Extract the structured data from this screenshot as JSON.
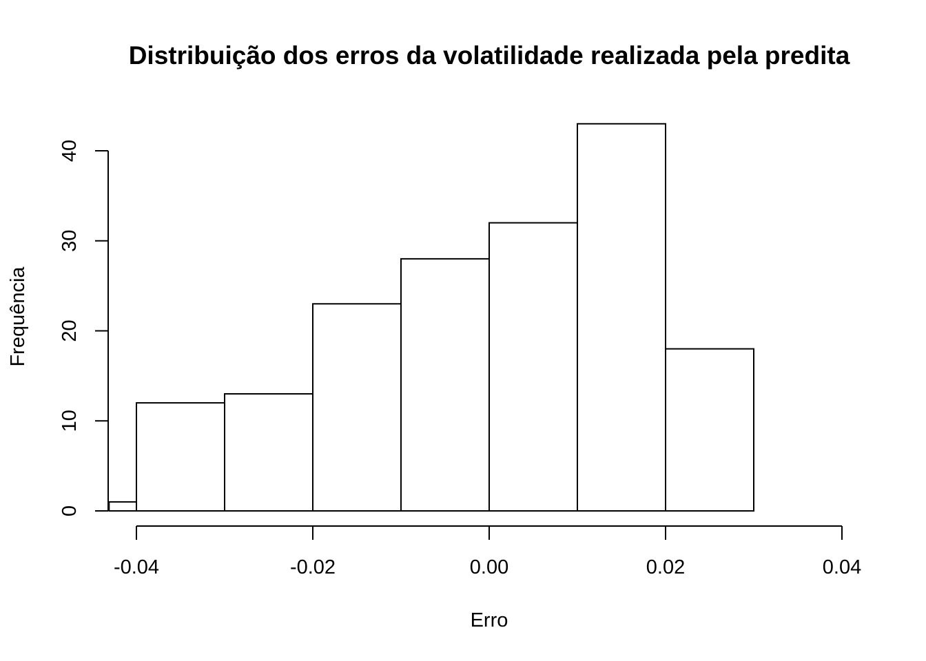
{
  "chart_data": {
    "type": "bar",
    "title": "Distribuição dos erros da volatilidade realizada pela predita",
    "xlabel": "Erro",
    "ylabel": "Frequência",
    "bins": [
      {
        "start": -0.0431,
        "end": -0.04,
        "count": 1
      },
      {
        "start": -0.04,
        "end": -0.03,
        "count": 12
      },
      {
        "start": -0.03,
        "end": -0.02,
        "count": 13
      },
      {
        "start": -0.02,
        "end": -0.01,
        "count": 23
      },
      {
        "start": -0.01,
        "end": 0.0,
        "count": 28
      },
      {
        "start": 0.0,
        "end": 0.01,
        "count": 32
      },
      {
        "start": 0.01,
        "end": 0.02,
        "count": 43
      },
      {
        "start": 0.02,
        "end": 0.03,
        "count": 18
      }
    ],
    "x_ticks": [
      -0.04,
      -0.02,
      0.0,
      0.02,
      0.04
    ],
    "x_tick_labels": [
      "-0.04",
      "-0.02",
      "0.00",
      "0.02",
      "0.04"
    ],
    "y_ticks": [
      0,
      10,
      20,
      30,
      40
    ],
    "y_tick_labels": [
      "0",
      "10",
      "20",
      "30",
      "40"
    ],
    "xlim": [
      -0.04,
      0.04
    ],
    "ylim": [
      0,
      40
    ],
    "grid": false,
    "colors": {
      "bar_fill": "#ffffff",
      "bar_stroke": "#000000"
    }
  }
}
